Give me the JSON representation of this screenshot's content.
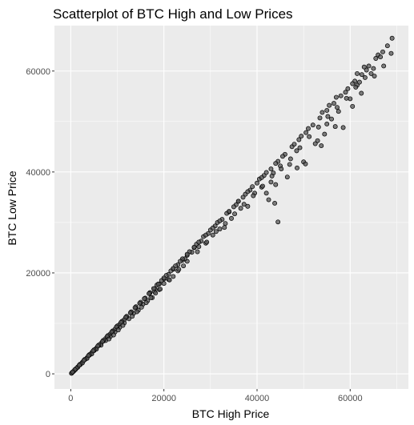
{
  "chart_data": {
    "type": "scatter",
    "title": "Scatterplot of BTC High and Low Prices",
    "xlabel": "BTC High Price",
    "ylabel": "BTC Low Price",
    "xlim": [
      -3500,
      72500
    ],
    "ylim": [
      -3000,
      69000
    ],
    "x_ticks": [
      0,
      20000,
      40000,
      60000
    ],
    "x_tick_labels": [
      "0",
      "20000",
      "40000",
      "60000"
    ],
    "y_ticks": [
      0,
      20000,
      40000,
      60000
    ],
    "y_tick_labels": [
      "0",
      "20000",
      "40000",
      "60000"
    ],
    "grid": true,
    "legend": "none",
    "colors": {
      "panel": "#ebebeb",
      "grid": "#ffffff",
      "point_fill": "#555555",
      "point_stroke": "#000000",
      "tick_text": "#4d4d4d",
      "tick_mark": "#333333"
    },
    "series": [
      {
        "points": [
          [
            200,
            150
          ],
          [
            600,
            480
          ],
          [
            1000,
            850
          ],
          [
            1500,
            1350
          ],
          [
            2000,
            1800
          ],
          [
            2500,
            2300
          ],
          [
            3000,
            2800
          ],
          [
            3500,
            3200
          ],
          [
            4000,
            3700
          ],
          [
            4500,
            4200
          ],
          [
            5000,
            4600
          ],
          [
            5500,
            5100
          ],
          [
            6000,
            5600
          ],
          [
            6500,
            6050
          ],
          [
            7000,
            6500
          ],
          [
            7500,
            7000
          ],
          [
            8000,
            7450
          ],
          [
            8500,
            7900
          ],
          [
            9000,
            8400
          ],
          [
            9500,
            8850
          ],
          [
            10000,
            9300
          ],
          [
            10500,
            9800
          ],
          [
            11000,
            10300
          ],
          [
            11500,
            10750
          ],
          [
            12000,
            11200
          ],
          [
            13000,
            12200
          ],
          [
            14000,
            13100
          ],
          [
            15000,
            14000
          ],
          [
            16000,
            15000
          ],
          [
            17000,
            16000
          ],
          [
            18000,
            16900
          ],
          [
            19000,
            17800
          ],
          [
            20000,
            18800
          ],
          [
            21000,
            19700
          ],
          [
            22000,
            20700
          ],
          [
            23000,
            21600
          ],
          [
            24000,
            22500
          ],
          [
            25000,
            23500
          ],
          [
            26500,
            25000
          ],
          [
            28000,
            26300
          ],
          [
            29500,
            27800
          ],
          [
            31000,
            29300
          ],
          [
            32500,
            30600
          ],
          [
            34000,
            32100
          ],
          [
            35500,
            33500
          ],
          [
            37000,
            35000
          ],
          [
            38500,
            36400
          ],
          [
            40000,
            37800
          ],
          [
            41500,
            39300
          ],
          [
            43000,
            40600
          ],
          [
            44500,
            42100
          ],
          [
            46000,
            43500
          ],
          [
            47500,
            45000
          ],
          [
            49000,
            46400
          ],
          [
            50500,
            47800
          ],
          [
            52000,
            49300
          ],
          [
            53500,
            50700
          ],
          [
            55000,
            52200
          ],
          [
            56500,
            53600
          ],
          [
            58000,
            55100
          ],
          [
            59500,
            56500
          ],
          [
            61000,
            58000
          ],
          [
            62500,
            59300
          ],
          [
            64000,
            61000
          ],
          [
            65500,
            62500
          ],
          [
            67000,
            63800
          ],
          [
            68000,
            65000
          ],
          [
            69000,
            66500
          ],
          [
            68800,
            63500
          ],
          [
            67200,
            61000
          ],
          [
            66000,
            63200
          ],
          [
            63500,
            60200
          ],
          [
            61500,
            57200
          ],
          [
            60000,
            54500
          ],
          [
            57500,
            52000
          ],
          [
            55000,
            49500
          ],
          [
            53000,
            46200
          ],
          [
            50000,
            42000
          ],
          [
            48500,
            44200
          ],
          [
            47000,
            41500
          ],
          [
            45000,
            41200
          ],
          [
            44000,
            37500
          ],
          [
            43500,
            39800
          ],
          [
            43000,
            38000
          ],
          [
            42500,
            34500
          ],
          [
            41000,
            37000
          ],
          [
            39500,
            35800
          ],
          [
            38000,
            33200
          ],
          [
            36500,
            32800
          ],
          [
            36000,
            34200
          ],
          [
            34500,
            30800
          ],
          [
            33000,
            29000
          ],
          [
            32000,
            28700
          ],
          [
            30500,
            27500
          ],
          [
            29000,
            25900
          ],
          [
            27500,
            25200
          ],
          [
            26000,
            24100
          ],
          [
            25000,
            22300
          ],
          [
            24500,
            22800
          ],
          [
            23000,
            20400
          ],
          [
            22000,
            19300
          ],
          [
            21000,
            18700
          ],
          [
            20000,
            17900
          ],
          [
            19000,
            16700
          ],
          [
            18000,
            16300
          ],
          [
            17500,
            15100
          ],
          [
            16500,
            14500
          ],
          [
            15500,
            13800
          ],
          [
            14500,
            12600
          ],
          [
            13500,
            12000
          ],
          [
            12500,
            10900
          ],
          [
            11500,
            10100
          ],
          [
            10500,
            9200
          ],
          [
            9500,
            8300
          ],
          [
            8500,
            7400
          ],
          [
            7500,
            6600
          ],
          [
            6500,
            5700
          ],
          [
            5500,
            4900
          ],
          [
            4500,
            3950
          ],
          [
            3500,
            3050
          ],
          [
            2500,
            2150
          ],
          [
            1500,
            1300
          ],
          [
            800,
            700
          ],
          [
            300,
            250
          ],
          [
            58500,
            48800
          ],
          [
            60500,
            53000
          ],
          [
            62000,
            57800
          ],
          [
            64500,
            59500
          ],
          [
            46500,
            39000
          ],
          [
            52500,
            45600
          ],
          [
            54500,
            47500
          ],
          [
            56000,
            50500
          ],
          [
            59000,
            55800
          ],
          [
            60500,
            57500
          ],
          [
            40500,
            38600
          ],
          [
            39000,
            37100
          ],
          [
            37500,
            35600
          ],
          [
            33500,
            31800
          ],
          [
            31500,
            30000
          ],
          [
            30000,
            28500
          ],
          [
            28500,
            27200
          ],
          [
            27000,
            25700
          ],
          [
            25500,
            24200
          ],
          [
            24000,
            22800
          ],
          [
            22500,
            21400
          ],
          [
            21500,
            20400
          ],
          [
            20500,
            19500
          ],
          [
            19500,
            18500
          ],
          [
            18500,
            17600
          ],
          [
            17000,
            16100
          ],
          [
            15000,
            14200
          ],
          [
            14000,
            13300
          ],
          [
            13000,
            12300
          ],
          [
            12000,
            11400
          ],
          [
            11000,
            10400
          ],
          [
            10000,
            9500
          ],
          [
            9000,
            8500
          ],
          [
            8000,
            7600
          ],
          [
            7000,
            6650
          ],
          [
            6000,
            5700
          ],
          [
            5000,
            4750
          ],
          [
            4000,
            3800
          ],
          [
            3000,
            2850
          ],
          [
            2000,
            1900
          ],
          [
            1200,
            1100
          ],
          [
            500,
            420
          ],
          [
            150,
            100
          ],
          [
            65000,
            60500
          ],
          [
            66500,
            62800
          ],
          [
            63000,
            60800
          ],
          [
            61500,
            59500
          ],
          [
            57000,
            54800
          ],
          [
            55500,
            53200
          ],
          [
            54000,
            51800
          ],
          [
            51000,
            48600
          ],
          [
            49500,
            47100
          ],
          [
            48000,
            45500
          ],
          [
            45500,
            43100
          ],
          [
            44000,
            41700
          ],
          [
            42000,
            39900
          ],
          [
            41000,
            38900
          ],
          [
            38000,
            36100
          ],
          [
            36000,
            34200
          ],
          [
            35000,
            33100
          ],
          [
            34000,
            32200
          ],
          [
            32000,
            30300
          ],
          [
            30500,
            28900
          ],
          [
            29000,
            27500
          ],
          [
            27500,
            26100
          ],
          [
            26500,
            25100
          ],
          [
            25000,
            23700
          ],
          [
            23500,
            22300
          ],
          [
            22000,
            20900
          ],
          [
            20000,
            19000
          ],
          [
            18800,
            17800
          ],
          [
            17800,
            16900
          ],
          [
            16800,
            15900
          ],
          [
            15800,
            14900
          ],
          [
            14800,
            14000
          ],
          [
            13800,
            13100
          ],
          [
            12800,
            12100
          ],
          [
            11800,
            11200
          ],
          [
            10800,
            10200
          ],
          [
            9800,
            9300
          ],
          [
            8800,
            8300
          ],
          [
            7800,
            7400
          ],
          [
            6800,
            6400
          ],
          [
            5800,
            5500
          ],
          [
            4800,
            4550
          ],
          [
            3800,
            3600
          ],
          [
            2800,
            2650
          ],
          [
            1800,
            1700
          ],
          [
            900,
            850
          ],
          [
            400,
            380
          ],
          [
            8200,
            6900
          ],
          [
            9200,
            7700
          ],
          [
            10200,
            8700
          ],
          [
            11200,
            9600
          ],
          [
            13200,
            11400
          ],
          [
            14200,
            12300
          ],
          [
            15200,
            13200
          ],
          [
            16200,
            14100
          ],
          [
            17200,
            15100
          ],
          [
            18200,
            16000
          ],
          [
            19200,
            16800
          ],
          [
            21200,
            18600
          ],
          [
            23200,
            20700
          ],
          [
            24200,
            21400
          ],
          [
            27200,
            24200
          ],
          [
            29200,
            26100
          ],
          [
            31200,
            28200
          ],
          [
            33200,
            29800
          ],
          [
            35200,
            31700
          ],
          [
            37200,
            33600
          ],
          [
            39200,
            35300
          ],
          [
            41200,
            37200
          ],
          [
            43200,
            39200
          ],
          [
            45200,
            40600
          ],
          [
            47200,
            42600
          ],
          [
            49200,
            44800
          ],
          [
            51200,
            47000
          ],
          [
            53200,
            48900
          ],
          [
            55200,
            51000
          ],
          [
            57200,
            52800
          ],
          [
            59200,
            54600
          ],
          [
            61200,
            56800
          ],
          [
            63200,
            58700
          ],
          [
            65200,
            59000
          ],
          [
            42000,
            35800
          ],
          [
            43800,
            33800
          ],
          [
            48600,
            40800
          ],
          [
            50400,
            41600
          ],
          [
            56800,
            49000
          ],
          [
            62400,
            55600
          ],
          [
            44500,
            30100
          ],
          [
            53800,
            45200
          ]
        ]
      }
    ]
  }
}
